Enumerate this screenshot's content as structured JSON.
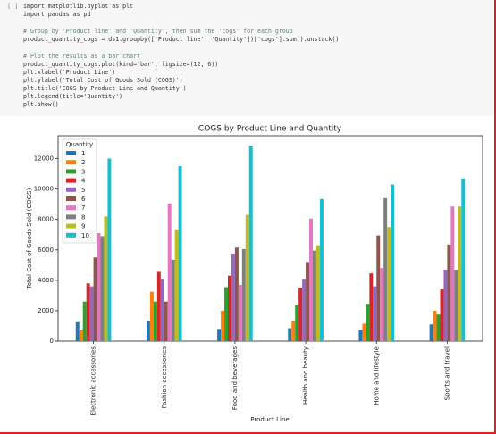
{
  "code": [
    "import matplotlib.pyplot as plt",
    "import pandas as pd",
    "# Group by 'Product line' and 'Quantity', then sum the 'cogs' for each group",
    "product_quantity_cogs = ds1.groupby(['Product line', 'Quantity'])['cogs'].sum().unstack()",
    "# Plot the results as a bar chart",
    "product_quantity_cogs.plot(kind='bar', figsize=(12, 6))",
    "plt.xlabel('Product Line')",
    "plt.ylabel('Total Cost of Goods Sold (COGS)')",
    "plt.title('COGS by Product Line and Quantity')",
    "plt.legend(title='Quantity')",
    "plt.show()"
  ],
  "chart_data": {
    "type": "bar",
    "title": "COGS by Product Line and Quantity",
    "x_label": "Product Line",
    "y_label": "Total Cost of Goods Sold (COGS)",
    "categories": [
      "Electronic accessories",
      "Fashion accessories",
      "Food and beverages",
      "Health and beauty",
      "Home and lifestyle",
      "Sports and travel"
    ],
    "legend_title": "Quantity",
    "legend_position": "upper left",
    "series": [
      {
        "name": "1",
        "color": "#1f77b4",
        "values": [
          1250,
          1350,
          800,
          850,
          700,
          1100
        ]
      },
      {
        "name": "2",
        "color": "#ff7f0e",
        "values": [
          750,
          3250,
          2000,
          1300,
          1150,
          2000
        ]
      },
      {
        "name": "3",
        "color": "#2ca02c",
        "values": [
          2600,
          2600,
          3550,
          2350,
          2450,
          1750
        ]
      },
      {
        "name": "4",
        "color": "#d62728",
        "values": [
          3800,
          4550,
          4300,
          3500,
          4450,
          3400
        ]
      },
      {
        "name": "5",
        "color": "#9467bd",
        "values": [
          3600,
          4100,
          5750,
          4100,
          3600,
          4700
        ]
      },
      {
        "name": "6",
        "color": "#8c564b",
        "values": [
          5500,
          2600,
          6150,
          5200,
          6950,
          6350
        ]
      },
      {
        "name": "7",
        "color": "#e377c2",
        "values": [
          7100,
          9050,
          3700,
          8050,
          4800,
          8850
        ]
      },
      {
        "name": "8",
        "color": "#7f7f7f",
        "values": [
          6900,
          5350,
          6050,
          5950,
          9400,
          4700
        ]
      },
      {
        "name": "9",
        "color": "#bcbd22",
        "values": [
          8200,
          7350,
          8300,
          6300,
          7500,
          8850
        ]
      },
      {
        "name": "10",
        "color": "#17becf",
        "values": [
          12000,
          11500,
          12850,
          9350,
          10300,
          10700
        ]
      }
    ],
    "ylim": [
      0,
      13500
    ],
    "yticks": [
      0,
      2000,
      4000,
      6000,
      8000,
      10000,
      12000
    ]
  }
}
